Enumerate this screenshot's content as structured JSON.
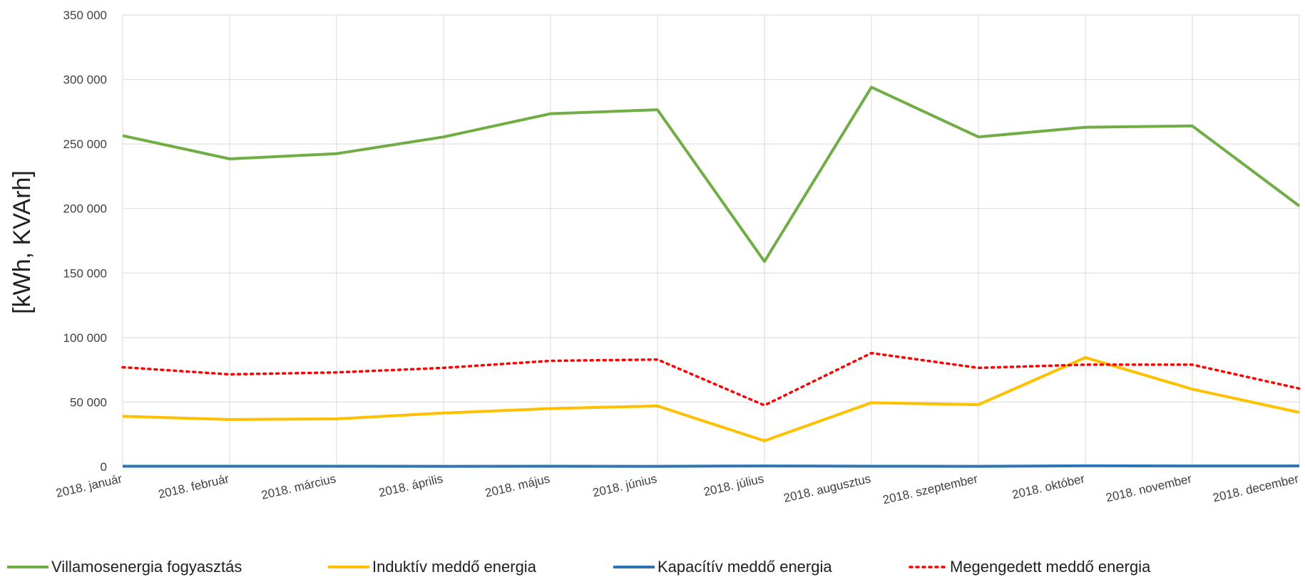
{
  "chart_data": {
    "type": "line",
    "xlabel": "",
    "ylabel": "[kWh, KVArh]",
    "ylim": [
      0,
      350000
    ],
    "y_ticks": [
      0,
      50000,
      100000,
      150000,
      200000,
      250000,
      300000,
      350000
    ],
    "y_tick_labels": [
      "0",
      "50 000",
      "100 000",
      "150 000",
      "200 000",
      "250 000",
      "300 000",
      "350 000"
    ],
    "categories": [
      "2018. január",
      "2018. február",
      "2018. március",
      "2018. április",
      "2018. május",
      "2018. június",
      "2018. július",
      "2018. augusztus",
      "2018. szeptember",
      "2018. október",
      "2018. november",
      "2018. december"
    ],
    "grid": true,
    "legend_position": "bottom",
    "series": [
      {
        "name": "Villamosenergia fogyasztás",
        "color": "#70ad47",
        "style": "solid",
        "values": [
          256500,
          238500,
          242500,
          255500,
          273500,
          276500,
          159000,
          294000,
          255500,
          263000,
          264000,
          202000
        ]
      },
      {
        "name": "Induktív meddő energia",
        "color": "#ffc000",
        "style": "solid",
        "values": [
          39000,
          36500,
          37000,
          41500,
          45000,
          47000,
          20000,
          49500,
          48000,
          84500,
          60000,
          42000
        ]
      },
      {
        "name": "Kapacítív meddő energia",
        "color": "#2e75b6",
        "style": "solid",
        "values": [
          300,
          300,
          300,
          200,
          300,
          200,
          500,
          300,
          200,
          600,
          500,
          500
        ]
      },
      {
        "name": "Megengedett meddő energia",
        "color": "#ff0000",
        "style": "dotted",
        "values": [
          77000,
          71500,
          73000,
          76500,
          82000,
          83000,
          47500,
          88000,
          76500,
          79000,
          79000,
          60500
        ]
      }
    ]
  }
}
